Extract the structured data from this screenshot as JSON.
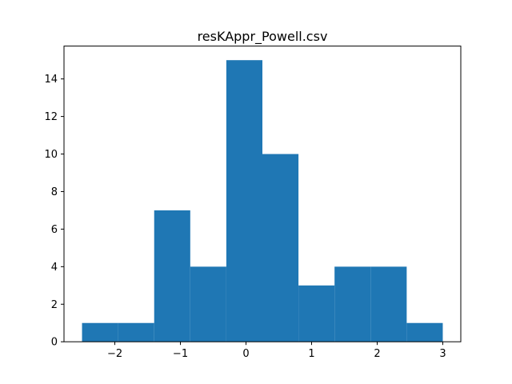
{
  "chart_data": {
    "type": "bar",
    "title": "resKAppr_Powell.csv",
    "xlabel": "",
    "ylabel": "",
    "bin_edges": [
      -2.5,
      -1.95,
      -1.4,
      -0.85,
      -0.3,
      0.25,
      0.8,
      1.35,
      1.9,
      2.45,
      3.0
    ],
    "values": [
      1,
      1,
      7,
      4,
      15,
      10,
      3,
      4,
      4,
      1
    ],
    "xlim": [
      -2.775,
      3.275
    ],
    "ylim": [
      0,
      15.75
    ],
    "xticks": [
      -2,
      -1,
      0,
      1,
      2,
      3
    ],
    "xtick_labels": [
      "−2",
      "−1",
      "0",
      "1",
      "2",
      "3"
    ],
    "yticks": [
      0,
      2,
      4,
      6,
      8,
      10,
      12,
      14
    ],
    "ytick_labels": [
      "0",
      "2",
      "4",
      "6",
      "8",
      "10",
      "12",
      "14"
    ],
    "bar_color": "#1f77b4",
    "grid": false,
    "legend": "none"
  }
}
